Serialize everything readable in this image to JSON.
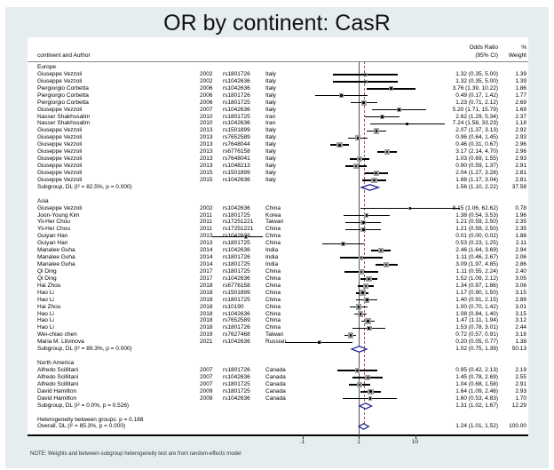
{
  "title_bar": {
    "title": "OR by continent: CasR"
  },
  "chart_data": {
    "type": "forest",
    "title": "OR by continent: CasR",
    "xscale": "log10",
    "xlim_ticks": [
      0.1,
      1,
      10
    ],
    "xtick_labels": [
      ".1",
      "1",
      "10"
    ],
    "ref_line": 1.0,
    "overall_dashed_line": 1.24,
    "legend_position": "none",
    "columns": {
      "left": "continent and Author",
      "or_line1": "Odds Ratio",
      "or_line2": "(95% CI)",
      "weight_line1": "%",
      "weight_line2": "Weight"
    },
    "groups": [
      {
        "name": "Europe",
        "studies": [
          {
            "author": "Giuseppe Vezzoli",
            "year": "2002",
            "snp": "rs1801726",
            "country": "Italy",
            "or": 1.32,
            "lo": 0.35,
            "hi": 5.0,
            "or_ci": "1.32 (0.35, 5.00)",
            "weight": 1.39
          },
          {
            "author": "Giuseppe Vezzoli",
            "year": "2002",
            "snp": "rs1042636",
            "country": "Italy",
            "or": 1.32,
            "lo": 0.35,
            "hi": 5.0,
            "or_ci": "1.32 (0.35, 5.00)",
            "weight": 1.39
          },
          {
            "author": "Piergiorgio Corbetta",
            "year": "2006",
            "snp": "rs1042636",
            "country": "Italy",
            "or": 3.76,
            "lo": 1.39,
            "hi": 10.22,
            "or_ci": "3.76 (1.39, 10.22)",
            "weight": 1.86
          },
          {
            "author": "Piergiorgio Corbetta",
            "year": "2006",
            "snp": "rs1801726",
            "country": "Italy",
            "or": 0.49,
            "lo": 0.17,
            "hi": 1.42,
            "or_ci": "0.49 (0.17, 1.42)",
            "weight": 1.77
          },
          {
            "author": "Piergiorgio Corbetta",
            "year": "2006",
            "snp": "rs1801725",
            "country": "Italy",
            "or": 1.23,
            "lo": 0.71,
            "hi": 2.12,
            "or_ci": "1.23 (0.71, 2.12)",
            "weight": 2.69
          },
          {
            "author": "Giuseppe Vezzoli",
            "year": "2007",
            "snp": "rs1042636",
            "country": "Italy",
            "or": 5.2,
            "lo": 1.71,
            "hi": 15.79,
            "or_ci": "5.20 (1.71, 15.79)",
            "weight": 1.69
          },
          {
            "author": "Nasser Shakhssalim",
            "year": "2010",
            "snp": "rs1801725",
            "country": "Iran",
            "or": 2.62,
            "lo": 1.29,
            "hi": 5.34,
            "or_ci": "2.62 (1.29, 5.34)",
            "weight": 2.37
          },
          {
            "author": "Nasser Shakhssalim",
            "year": "2010",
            "snp": "rs1042636",
            "country": "Iran",
            "or": 7.24,
            "lo": 1.58,
            "hi": 33.23,
            "or_ci": "7.24 (1.58, 33.23)",
            "weight": 1.18
          },
          {
            "author": "Giuseppe Vezzoli",
            "year": "2013",
            "snp": "rs1501899",
            "country": "Italy",
            "or": 2.07,
            "lo": 1.37,
            "hi": 3.13,
            "or_ci": "2.07 (1.37, 3.13)",
            "weight": 2.92
          },
          {
            "author": "Giuseppe Vezzoli",
            "year": "2013",
            "snp": "rs7652589",
            "country": "Italy",
            "or": 0.96,
            "lo": 0.64,
            "hi": 1.45,
            "or_ci": "0.96 (0.64, 1.45)",
            "weight": 2.93
          },
          {
            "author": "Giuseppe Vezzoli",
            "year": "2013",
            "snp": "rs7648044",
            "country": "Italy",
            "or": 0.46,
            "lo": 0.31,
            "hi": 0.67,
            "or_ci": "0.46 (0.31, 0.67)",
            "weight": 2.96
          },
          {
            "author": "Giuseppe Vezzoli",
            "year": "2013",
            "snp": "rs6776158",
            "country": "Italy",
            "or": 3.17,
            "lo": 2.14,
            "hi": 4.7,
            "or_ci": "3.17 (2.14, 4.70)",
            "weight": 2.96
          },
          {
            "author": "Giuseppe Vezzoli",
            "year": "2013",
            "snp": "rs7648041",
            "country": "Italy",
            "or": 1.03,
            "lo": 0.69,
            "hi": 1.55,
            "or_ci": "1.03 (0.69, 1.55)",
            "weight": 2.93
          },
          {
            "author": "Giuseppe Vezzoli",
            "year": "2013",
            "snp": "rs1048213",
            "country": "Italy",
            "or": 0.9,
            "lo": 0.59,
            "hi": 1.37,
            "or_ci": "0.90 (0.59, 1.37)",
            "weight": 2.91
          },
          {
            "author": "Giuseppe Vezzoli",
            "year": "2015",
            "snp": "rs1501899",
            "country": "Italy",
            "or": 2.04,
            "lo": 1.27,
            "hi": 3.28,
            "or_ci": "2.04 (1.27, 3.28)",
            "weight": 2.81
          },
          {
            "author": "Giuseppe Vezzoli",
            "year": "2015",
            "snp": "rs1042636",
            "country": "Italy",
            "or": 1.88,
            "lo": 1.17,
            "hi": 3.04,
            "or_ci": "1.88 (1.17, 3.04)",
            "weight": 2.81
          }
        ],
        "subgroup": {
          "label": "Subgroup, DL (I² = 82.5%, p = 0.000)",
          "or": 1.56,
          "lo": 1.1,
          "hi": 2.22,
          "or_ci": "1.56 (1.10, 2.22)",
          "weight": 37.58
        }
      },
      {
        "name": "Asia",
        "studies": [
          {
            "author": "Giuseppe Vezzoli",
            "year": "2002",
            "snp": "rs1042636",
            "country": "China",
            "or": 8.15,
            "lo": 1.06,
            "hi": 62.62,
            "or_ci": "8.15 (1.06, 62.62)",
            "weight": 0.78
          },
          {
            "author": "Joon-Young Kim",
            "year": "2011",
            "snp": "rs1801725",
            "country": "Korea",
            "or": 1.38,
            "lo": 0.54,
            "hi": 3.53,
            "or_ci": "1.38 (0.54, 3.53)",
            "weight": 1.96
          },
          {
            "author": "Yii-Her Chou",
            "year": "2011",
            "snp": "rs17251221",
            "country": "Taiwan",
            "or": 1.21,
            "lo": 0.59,
            "hi": 2.5,
            "or_ci": "1.21 (0.59, 2.50)",
            "weight": 2.35
          },
          {
            "author": "Yii-Her Chou",
            "year": "2011",
            "snp": "rs17251221",
            "country": "China",
            "or": 1.21,
            "lo": 0.59,
            "hi": 2.5,
            "or_ci": "1.21 (0.59, 2.50)",
            "weight": 2.35
          },
          {
            "author": "Guiyan Han",
            "year": "2013",
            "snp": "rs1042636",
            "country": "China",
            "or": 0.01,
            "lo": 0.0,
            "hi": 0.02,
            "or_ci": "0.01 (0.00, 0.02)",
            "weight": 1.88
          },
          {
            "author": "Guiyan Han",
            "year": "2013",
            "snp": "rs1801725",
            "country": "China",
            "or": 0.53,
            "lo": 0.23,
            "hi": 1.25,
            "or_ci": "0.53 (0.23, 1.25)",
            "weight": 2.11
          },
          {
            "author": "Manalee Guha",
            "year": "2014",
            "snp": "rs1042636",
            "country": "India",
            "or": 2.46,
            "lo": 1.64,
            "hi": 3.69,
            "or_ci": "2.46 (1.64, 3.69)",
            "weight": 2.94
          },
          {
            "author": "Manalee Guha",
            "year": "2014",
            "snp": "rs1801726",
            "country": "India",
            "or": 1.11,
            "lo": 0.46,
            "hi": 2.67,
            "or_ci": "1.11 (0.46, 2.67)",
            "weight": 2.06
          },
          {
            "author": "Manalee Guha",
            "year": "2014",
            "snp": "rs1801725",
            "country": "India",
            "or": 3.09,
            "lo": 1.97,
            "hi": 4.85,
            "or_ci": "3.09 (1.97, 4.85)",
            "weight": 2.86
          },
          {
            "author": "Qi Ding",
            "year": "2017",
            "snp": "rs1801725",
            "country": "China",
            "or": 1.11,
            "lo": 0.55,
            "hi": 2.24,
            "or_ci": "1.11 (0.55, 2.24)",
            "weight": 2.4
          },
          {
            "author": "Qi Ding",
            "year": "2017",
            "snp": "rs1042636",
            "country": "China",
            "or": 1.52,
            "lo": 1.09,
            "hi": 2.12,
            "or_ci": "1.52 (1.09, 2.12)",
            "weight": 3.05
          },
          {
            "author": "Hai Zhou",
            "year": "2018",
            "snp": "rs6776158",
            "country": "China",
            "or": 1.34,
            "lo": 0.97,
            "hi": 1.86,
            "or_ci": "1.34 (0.97, 1.86)",
            "weight": 3.06
          },
          {
            "author": "Hao Li",
            "year": "2018",
            "snp": "rs1501899",
            "country": "China",
            "or": 1.17,
            "lo": 0.9,
            "hi": 1.5,
            "or_ci": "1.17 (0.90, 1.50)",
            "weight": 3.15
          },
          {
            "author": "Hao Li",
            "year": "2018",
            "snp": "rs1801725",
            "country": "China",
            "or": 1.4,
            "lo": 0.91,
            "hi": 2.15,
            "or_ci": "1.40 (0.91, 2.15)",
            "weight": 2.89
          },
          {
            "author": "Hai Zhou",
            "year": "2018",
            "snp": "rs10190",
            "country": "China",
            "or": 1.0,
            "lo": 0.7,
            "hi": 1.42,
            "or_ci": "1.00 (0.70, 1.42)",
            "weight": 3.01
          },
          {
            "author": "Hao Li",
            "year": "2018",
            "snp": "rs1042636",
            "country": "China",
            "or": 1.08,
            "lo": 0.84,
            "hi": 1.4,
            "or_ci": "1.08 (0.84, 1.40)",
            "weight": 3.15
          },
          {
            "author": "Hao Li",
            "year": "2018",
            "snp": "rs7652589",
            "country": "China",
            "or": 1.47,
            "lo": 1.11,
            "hi": 1.94,
            "or_ci": "1.47 (1.11, 1.94)",
            "weight": 3.12
          },
          {
            "author": "Hao Li",
            "year": "2018",
            "snp": "rs1801726",
            "country": "China",
            "or": 1.53,
            "lo": 0.78,
            "hi": 3.01,
            "or_ci": "1.53 (0.78, 3.01)",
            "weight": 2.44
          },
          {
            "author": "Wei-chiao chen",
            "year": "2019",
            "snp": "rs7627468",
            "country": "Taiwan",
            "or": 0.72,
            "lo": 0.57,
            "hi": 0.91,
            "or_ci": "0.72 (0.57, 0.91)",
            "weight": 3.18
          },
          {
            "author": "Maria M. Litvinova",
            "year": "2021",
            "snp": "rs1042636",
            "country": "Russian",
            "or": 0.2,
            "lo": 0.05,
            "hi": 0.77,
            "or_ci": "0.20 (0.05, 0.77)",
            "weight": 1.38
          }
        ],
        "subgroup": {
          "label": "Subgroup, DL (I² = 89.3%, p = 0.000)",
          "or": 1.02,
          "lo": 0.75,
          "hi": 1.39,
          "or_ci": "1.02 (0.75, 1.39)",
          "weight": 50.13
        }
      },
      {
        "name": "North America",
        "studies": [
          {
            "author": "Alfredo Scillitani",
            "year": "2007",
            "snp": "rs1801726",
            "country": "Canada",
            "or": 0.95,
            "lo": 0.42,
            "hi": 2.13,
            "or_ci": "0.95 (0.42, 2.13)",
            "weight": 2.19
          },
          {
            "author": "Alfredo Scillitani",
            "year": "2007",
            "snp": "rs1042636",
            "country": "Canada",
            "or": 1.45,
            "lo": 0.78,
            "hi": 2.69,
            "or_ci": "1.45 (0.78, 2.69)",
            "weight": 2.55
          },
          {
            "author": "Alfredo Scillitani",
            "year": "2007",
            "snp": "rs1801725",
            "country": "Canada",
            "or": 1.04,
            "lo": 0.68,
            "hi": 1.58,
            "or_ci": "1.04 (0.68, 1.58)",
            "weight": 2.91
          },
          {
            "author": "David Hamilton",
            "year": "2009",
            "snp": "rs1801725",
            "country": "Canada",
            "or": 1.64,
            "lo": 1.09,
            "hi": 2.46,
            "or_ci": "1.64 (1.09, 2.46)",
            "weight": 2.93
          },
          {
            "author": "David Hamilton",
            "year": "2009",
            "snp": "rs1042636",
            "country": "Canada",
            "or": 1.6,
            "lo": 0.53,
            "hi": 4.83,
            "or_ci": "1.60 (0.53, 4.83)",
            "weight": 1.7
          }
        ],
        "subgroup": {
          "label": "Subgroup, DL (I² = 0.0%, p = 0.526)",
          "or": 1.31,
          "lo": 1.02,
          "hi": 1.67,
          "or_ci": "1.31 (1.02, 1.67)",
          "weight": 12.29
        }
      }
    ],
    "heterogeneity_between": "Heterogeneity between groups: p = 0.188",
    "overall": {
      "label": "Overall, DL (I² = 85.3%, p = 0.000)",
      "or": 1.24,
      "lo": 1.01,
      "hi": 1.52,
      "or_ci": "1.24 (1.01, 1.52)",
      "weight": 100.0
    },
    "footnote": "NOTE: Weights and between-subgroup heterogeneity test are from random-effects model",
    "colors": {
      "background": "#e6edee",
      "panel": "#ffffff",
      "ci_line": "#000000",
      "weight_box": "#a1a1a1",
      "point": "#000000",
      "diamond_stroke": "#1a1a8f",
      "ref_line": "#555555",
      "dashed_line": "#a2594f"
    }
  }
}
